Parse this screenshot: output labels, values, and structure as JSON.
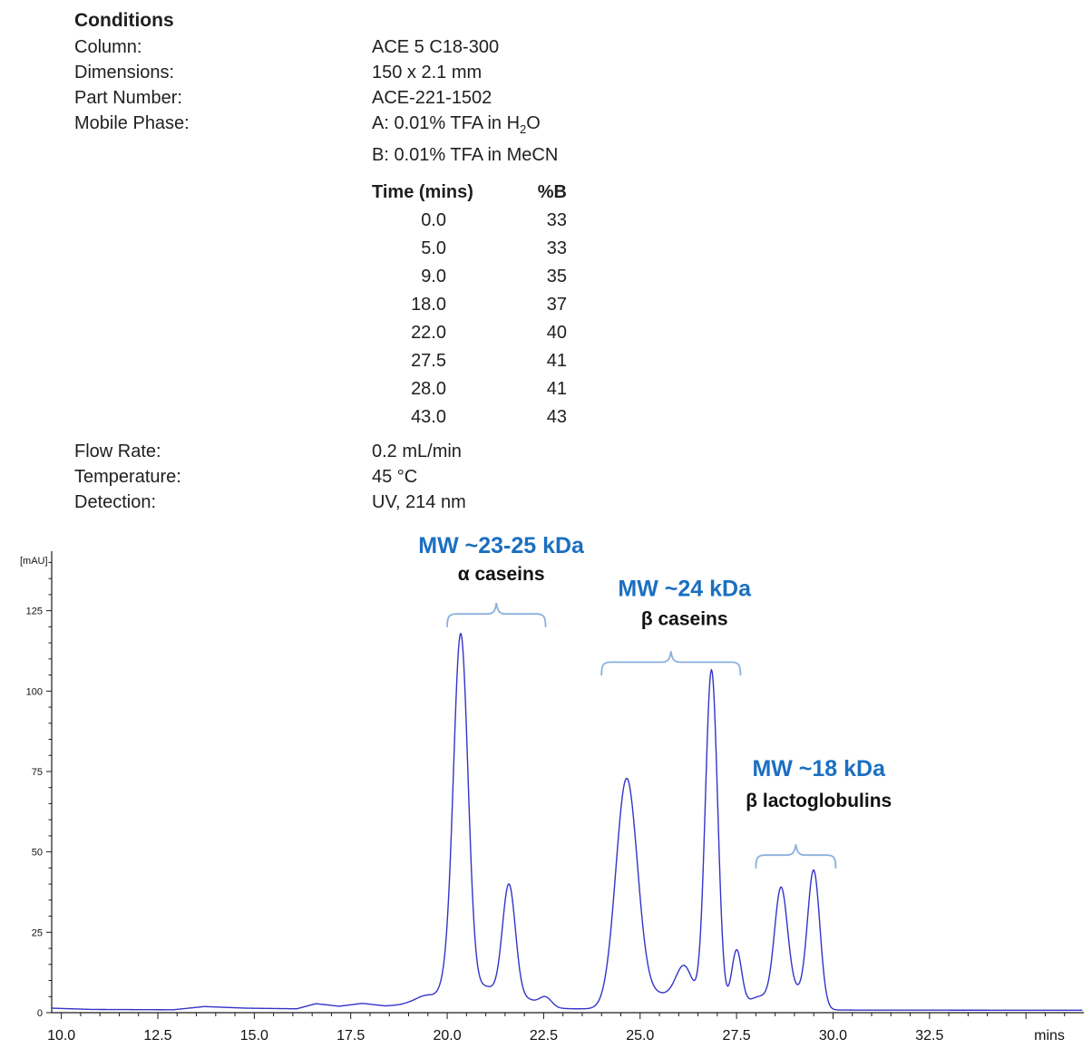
{
  "conditions": {
    "title": "Conditions",
    "rows": [
      {
        "label": "Column:",
        "parts": [
          {
            "text": "ACE 5 C18-300"
          }
        ]
      },
      {
        "label": "Dimensions:",
        "parts": [
          {
            "text": "150 x 2.1 mm"
          }
        ]
      },
      {
        "label": "Part Number:",
        "parts": [
          {
            "text": "ACE-221-1502"
          }
        ]
      },
      {
        "label": "Mobile Phase:",
        "parts": [
          {
            "text": "A: 0.01% TFA in H"
          },
          {
            "text": "2",
            "sub": true
          },
          {
            "text": "O"
          }
        ]
      },
      {
        "label": "",
        "parts": [
          {
            "text": "B: 0.01% TFA in MeCN"
          }
        ]
      }
    ],
    "rows2": [
      {
        "label": "Flow Rate:",
        "parts": [
          {
            "text": "0.2 mL/min"
          }
        ]
      },
      {
        "label": "Temperature:",
        "parts": [
          {
            "text": "45 °C"
          }
        ]
      },
      {
        "label": "Detection:",
        "parts": [
          {
            "text": "UV, 214 nm"
          }
        ]
      }
    ]
  },
  "gradient_table": {
    "headers": [
      "Time (mins)",
      "%B"
    ],
    "rows": [
      [
        "0.0",
        "33"
      ],
      [
        "5.0",
        "33"
      ],
      [
        "9.0",
        "35"
      ],
      [
        "18.0",
        "37"
      ],
      [
        "22.0",
        "40"
      ],
      [
        "27.5",
        "41"
      ],
      [
        "28.0",
        "41"
      ],
      [
        "43.0",
        "43"
      ]
    ]
  },
  "chart_data": {
    "type": "line",
    "title": "",
    "xlabel": "mins",
    "ylabel": "[mAU]",
    "xlim": [
      9.75,
      36.5
    ],
    "ylim": [
      0,
      143.5
    ],
    "x_major_tick_step": 2.5,
    "x_minor_tick_step": 0.5,
    "y_major_tick_step": 25,
    "y_minor_tick_step": 5,
    "x_tick_labels": [
      {
        "t": 10.0,
        "label": "10.0"
      },
      {
        "t": 12.5,
        "label": "12.5"
      },
      {
        "t": 15.0,
        "label": "15.0"
      },
      {
        "t": 17.5,
        "label": "17.5"
      },
      {
        "t": 20.0,
        "label": "20.0"
      },
      {
        "t": 22.5,
        "label": "22.5"
      },
      {
        "t": 25.0,
        "label": "25.0"
      },
      {
        "t": 27.5,
        "label": "27.5"
      },
      {
        "t": 30.0,
        "label": "30.0"
      },
      {
        "t": 32.5,
        "label": "32.5"
      }
    ],
    "y_tick_labels": [
      {
        "v": 0,
        "label": "0"
      },
      {
        "v": 25,
        "label": "25"
      },
      {
        "v": 50,
        "label": "50"
      },
      {
        "v": 75,
        "label": "75"
      },
      {
        "v": 100,
        "label": "100"
      },
      {
        "v": 125,
        "label": "125"
      }
    ],
    "colors": {
      "trace": "#3434c8",
      "axis": "#1a1a1a",
      "brace": "#8ab0dd",
      "mw_label": "#1b6fc1"
    },
    "baseline_points": [
      [
        9.75,
        1.4
      ],
      [
        10.8,
        1.0
      ],
      [
        12.9,
        0.9
      ],
      [
        13.7,
        1.9
      ],
      [
        14.8,
        1.4
      ],
      [
        16.1,
        1.2
      ],
      [
        16.6,
        2.8
      ],
      [
        17.2,
        2.0
      ],
      [
        17.8,
        2.9
      ],
      [
        18.4,
        2.1
      ],
      [
        19.0,
        2.6
      ],
      [
        23.3,
        1.2
      ],
      [
        27.9,
        1.0
      ],
      [
        30.6,
        0.8
      ],
      [
        36.5,
        0.75
      ]
    ],
    "peaks": [
      {
        "t": 19.5,
        "height": 3.0,
        "sigma": 0.3,
        "name": "pre-peak-bump"
      },
      {
        "t": 19.95,
        "height": 4.0,
        "sigma": 0.16,
        "name": "leading-shoulder"
      },
      {
        "t": 20.35,
        "height": 115.0,
        "sigma": 0.19,
        "name": "alpha-casein-peak-1"
      },
      {
        "t": 21.0,
        "height": 6.0,
        "sigma": 0.3,
        "name": "valley-fill"
      },
      {
        "t": 21.6,
        "height": 37.0,
        "sigma": 0.17,
        "name": "alpha-casein-peak-2"
      },
      {
        "t": 22.05,
        "height": 2.5,
        "sigma": 0.25,
        "name": "valley-fill"
      },
      {
        "t": 22.55,
        "height": 3.2,
        "sigma": 0.16,
        "name": "minor-bump"
      },
      {
        "t": 24.65,
        "height": 71.0,
        "sigma": 0.28,
        "name": "beta-casein-peak-1"
      },
      {
        "t": 25.5,
        "height": 4.5,
        "sigma": 0.45,
        "name": "valley-fill"
      },
      {
        "t": 26.15,
        "height": 12.0,
        "sigma": 0.22,
        "name": "shoulder-peak"
      },
      {
        "t": 26.85,
        "height": 105.5,
        "sigma": 0.16,
        "name": "beta-casein-peak-2"
      },
      {
        "t": 27.5,
        "height": 18.0,
        "sigma": 0.13,
        "name": "minor-peak"
      },
      {
        "t": 28.1,
        "height": 4.0,
        "sigma": 0.3,
        "name": "valley-fill"
      },
      {
        "t": 28.65,
        "height": 36.0,
        "sigma": 0.17,
        "name": "beta-lactoglobulin-peak-1"
      },
      {
        "t": 29.05,
        "height": 5.0,
        "sigma": 0.25,
        "name": "valley-fill"
      },
      {
        "t": 29.5,
        "height": 42.5,
        "sigma": 0.16,
        "name": "beta-lactoglobulin-peak-2"
      }
    ],
    "annotations": [
      {
        "mw_label": "MW ~23-25 kDa",
        "name_label": "α caseins",
        "brace_from": 20.0,
        "brace_to": 22.55,
        "brace_y_mau": 124,
        "label_t": 21.4,
        "mw_label_y_mau": 143.0,
        "name_label_y_mau": 134.5
      },
      {
        "mw_label": "MW ~24 kDa",
        "name_label": "β caseins",
        "brace_from": 24.0,
        "brace_to": 27.6,
        "brace_y_mau": 109,
        "label_t": 26.15,
        "mw_label_y_mau": 129.5,
        "name_label_y_mau": 120.5
      },
      {
        "mw_label": "MW ~18 kDa",
        "name_label": "β lactoglobulins",
        "brace_from": 28.0,
        "brace_to": 30.07,
        "brace_y_mau": 49,
        "label_t": 29.63,
        "mw_label_y_mau": 73.6,
        "name_label_y_mau": 64.0
      }
    ]
  }
}
